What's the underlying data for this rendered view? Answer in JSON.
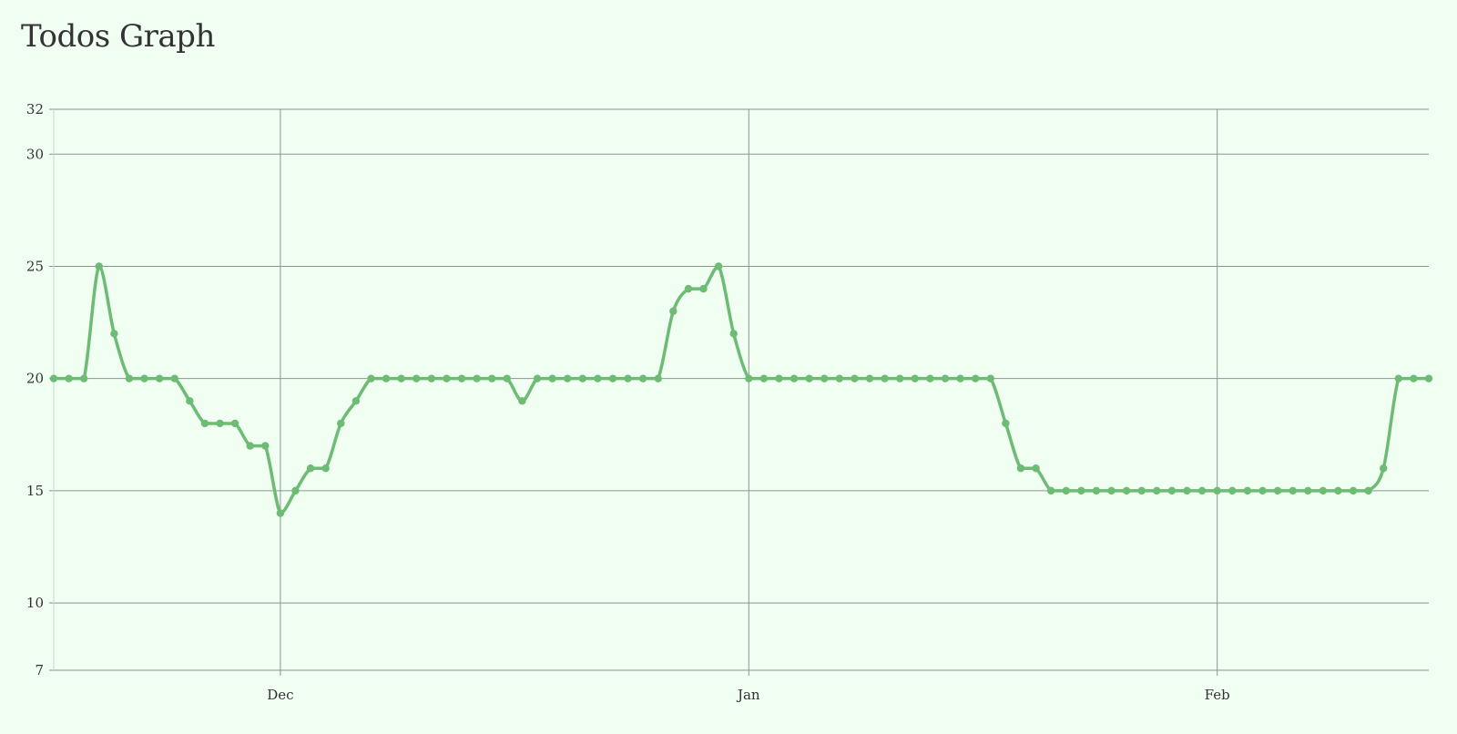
{
  "page": {
    "title": "Todos Graph"
  },
  "chart_data": {
    "type": "line",
    "title": "Todos Graph",
    "xlabel": "",
    "ylabel": "",
    "x_tick_labels": [
      "Dec",
      "Jan",
      "Feb"
    ],
    "x_ticks": [
      "2021-12-01",
      "2022-01-01",
      "2022-02-01"
    ],
    "x_range": [
      "2021-11-16",
      "2022-02-15"
    ],
    "ylim": [
      7,
      32
    ],
    "y_ticks": [
      7,
      10,
      15,
      20,
      25,
      30,
      32
    ],
    "grid": true,
    "legend": "none",
    "line_color": "#6dbb74",
    "series": [
      {
        "x": [
          "2021-11-16",
          "2021-11-17",
          "2021-11-18",
          "2021-11-19",
          "2021-11-20",
          "2021-11-21",
          "2021-11-22",
          "2021-11-23",
          "2021-11-24",
          "2021-11-25",
          "2021-11-26",
          "2021-11-27",
          "2021-11-28",
          "2021-11-29",
          "2021-11-30",
          "2021-12-01",
          "2021-12-02",
          "2021-12-03",
          "2021-12-04",
          "2021-12-05",
          "2021-12-06",
          "2021-12-07",
          "2021-12-08",
          "2021-12-09",
          "2021-12-10",
          "2021-12-11",
          "2021-12-12",
          "2021-12-13",
          "2021-12-14",
          "2021-12-15",
          "2021-12-16",
          "2021-12-17",
          "2021-12-18",
          "2021-12-19",
          "2021-12-20",
          "2021-12-21",
          "2021-12-22",
          "2021-12-23",
          "2021-12-24",
          "2021-12-25",
          "2021-12-26",
          "2021-12-27",
          "2021-12-28",
          "2021-12-29",
          "2021-12-30",
          "2021-12-31",
          "2022-01-01",
          "2022-01-02",
          "2022-01-03",
          "2022-01-04",
          "2022-01-05",
          "2022-01-06",
          "2022-01-07",
          "2022-01-08",
          "2022-01-09",
          "2022-01-10",
          "2022-01-11",
          "2022-01-12",
          "2022-01-13",
          "2022-01-14",
          "2022-01-15",
          "2022-01-16",
          "2022-01-17",
          "2022-01-18",
          "2022-01-19",
          "2022-01-20",
          "2022-01-21",
          "2022-01-22",
          "2022-01-23",
          "2022-01-24",
          "2022-01-25",
          "2022-01-26",
          "2022-01-27",
          "2022-01-28",
          "2022-01-29",
          "2022-01-30",
          "2022-01-31",
          "2022-02-01",
          "2022-02-02",
          "2022-02-03",
          "2022-02-04",
          "2022-02-05",
          "2022-02-06",
          "2022-02-07",
          "2022-02-08",
          "2022-02-09",
          "2022-02-10",
          "2022-02-11",
          "2022-02-12",
          "2022-02-13",
          "2022-02-14",
          "2022-02-15"
        ],
        "values": [
          20,
          20,
          20,
          25,
          22,
          20,
          20,
          20,
          20,
          19,
          18,
          18,
          18,
          17,
          17,
          14,
          15,
          16,
          16,
          18,
          19,
          20,
          20,
          20,
          20,
          20,
          20,
          20,
          20,
          20,
          20,
          19,
          20,
          20,
          20,
          20,
          20,
          20,
          20,
          20,
          20,
          23,
          24,
          24,
          25,
          22,
          20,
          20,
          20,
          20,
          20,
          20,
          20,
          20,
          20,
          20,
          20,
          20,
          20,
          20,
          20,
          20,
          20,
          18,
          16,
          16,
          15,
          15,
          15,
          15,
          15,
          15,
          15,
          15,
          15,
          15,
          15,
          15,
          15,
          15,
          15,
          15,
          15,
          15,
          15,
          15,
          15,
          15,
          16,
          20,
          20,
          20
        ]
      }
    ]
  }
}
